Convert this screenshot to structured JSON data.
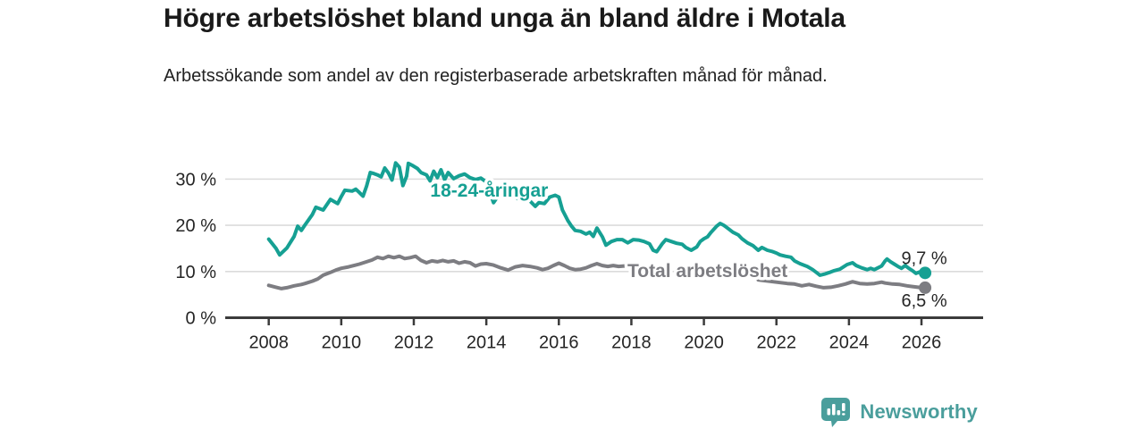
{
  "header": {
    "title": "Högre arbetslöshet bland unga än bland äldre i Motala",
    "subtitle": "Arbetssökande som andel av den registerbaserade arbetskraften månad för månad."
  },
  "footer": {
    "brand": "Newsworthy"
  },
  "colors": {
    "young": "#16a093",
    "total": "#7d7d82",
    "grid": "#dbdbdb",
    "axis": "#3b3b3b",
    "text": "#252525",
    "label_halo": "#ffffff",
    "brand": "#4a9e9c",
    "title": "#1a1a1a"
  },
  "chart_data": {
    "type": "line",
    "title": "Högre arbetslöshet bland unga än bland äldre i Motala",
    "subtitle": "Arbetssökande som andel av den registerbaserade arbetskraften månad för månad.",
    "xlabel": "",
    "ylabel": "",
    "grid": "horizontal",
    "legend_position": "inline-on-line",
    "xlim": [
      2006.8,
      2027.7
    ],
    "ylim": [
      0,
      38
    ],
    "yticks": [
      0,
      10,
      20,
      30
    ],
    "ytick_suffix": " %",
    "xticks": [
      2008,
      2010,
      2012,
      2014,
      2016,
      2018,
      2020,
      2022,
      2024,
      2026
    ],
    "series": [
      {
        "name": "18-24-åringar",
        "color_key": "young",
        "end_label": "9,7 %",
        "end_value": 9.7,
        "end_label_offset": -10,
        "label_at": [
          2014.08,
          27.6
        ],
        "segments": [
          [
            [
              2008.0,
              17.0
            ],
            [
              2008.2,
              15.0
            ],
            [
              2008.3,
              13.6
            ],
            [
              2008.5,
              15.1
            ],
            [
              2008.7,
              17.6
            ],
            [
              2008.8,
              19.8
            ],
            [
              2008.9,
              18.9
            ],
            [
              2009.0,
              20.1
            ],
            [
              2009.2,
              22.3
            ],
            [
              2009.3,
              23.9
            ],
            [
              2009.5,
              23.3
            ],
            [
              2009.7,
              25.6
            ],
            [
              2009.9,
              24.7
            ],
            [
              2010.0,
              26.2
            ],
            [
              2010.1,
              27.6
            ],
            [
              2010.3,
              27.4
            ],
            [
              2010.4,
              27.8
            ],
            [
              2010.5,
              27.1
            ],
            [
              2010.6,
              26.3
            ],
            [
              2010.7,
              28.5
            ],
            [
              2010.8,
              31.4
            ],
            [
              2010.9,
              31.2
            ],
            [
              2011.0,
              30.9
            ],
            [
              2011.1,
              30.5
            ],
            [
              2011.2,
              32.4
            ],
            [
              2011.3,
              31.3
            ],
            [
              2011.4,
              29.8
            ],
            [
              2011.5,
              33.5
            ],
            [
              2011.6,
              32.6
            ],
            [
              2011.7,
              28.6
            ],
            [
              2011.8,
              30.6
            ],
            [
              2011.85,
              33.4
            ],
            [
              2011.95,
              33.0
            ],
            [
              2012.1,
              32.3
            ],
            [
              2012.2,
              31.4
            ],
            [
              2012.35,
              30.9
            ],
            [
              2012.45,
              29.6
            ],
            [
              2012.55,
              31.7
            ],
            [
              2012.65,
              30.3
            ],
            [
              2012.75,
              32.0
            ],
            [
              2012.85,
              29.9
            ],
            [
              2012.95,
              31.4
            ],
            [
              2013.1,
              30.1
            ],
            [
              2013.25,
              30.7
            ],
            [
              2013.4,
              31.1
            ],
            [
              2013.55,
              30.3
            ],
            [
              2013.7,
              29.9
            ],
            [
              2013.85,
              30.2
            ],
            [
              2014.0,
              29.4
            ],
            [
              2014.2,
              24.9
            ],
            [
              2014.35,
              26.6
            ],
            [
              2014.5,
              26.1
            ],
            [
              2014.7,
              26.4
            ],
            [
              2014.85,
              25.8
            ],
            [
              2015.0,
              26.2
            ],
            [
              2015.2,
              25.3
            ],
            [
              2015.35,
              24.1
            ],
            [
              2015.45,
              24.9
            ],
            [
              2015.6,
              24.7
            ],
            [
              2015.75,
              26.1
            ],
            [
              2015.9,
              26.5
            ],
            [
              2016.0,
              26.1
            ],
            [
              2016.1,
              23.3
            ],
            [
              2016.25,
              21.0
            ],
            [
              2016.35,
              19.8
            ],
            [
              2016.45,
              18.9
            ],
            [
              2016.6,
              18.7
            ],
            [
              2016.75,
              18.1
            ],
            [
              2016.85,
              18.5
            ],
            [
              2016.95,
              17.6
            ],
            [
              2017.05,
              19.4
            ],
            [
              2017.2,
              17.5
            ],
            [
              2017.3,
              15.7
            ],
            [
              2017.45,
              16.5
            ],
            [
              2017.6,
              16.9
            ],
            [
              2017.75,
              16.9
            ],
            [
              2017.9,
              16.2
            ],
            [
              2018.05,
              16.9
            ],
            [
              2018.2,
              16.8
            ],
            [
              2018.35,
              16.5
            ],
            [
              2018.5,
              16.0
            ],
            [
              2018.6,
              14.6
            ],
            [
              2018.7,
              14.3
            ],
            [
              2018.85,
              16.0
            ],
            [
              2018.95,
              16.9
            ],
            [
              2019.1,
              16.5
            ],
            [
              2019.25,
              16.1
            ],
            [
              2019.4,
              15.9
            ],
            [
              2019.5,
              15.2
            ],
            [
              2019.65,
              14.6
            ],
            [
              2019.8,
              15.3
            ],
            [
              2019.9,
              16.5
            ],
            [
              2020.0,
              17.1
            ],
            [
              2020.1,
              17.5
            ],
            [
              2020.2,
              18.5
            ],
            [
              2020.35,
              19.8
            ],
            [
              2020.45,
              20.4
            ],
            [
              2020.55,
              20.0
            ],
            [
              2020.65,
              19.4
            ],
            [
              2020.8,
              18.5
            ],
            [
              2020.95,
              17.9
            ],
            [
              2021.05,
              17.1
            ],
            [
              2021.2,
              16.2
            ],
            [
              2021.35,
              15.6
            ],
            [
              2021.5,
              14.6
            ],
            [
              2021.6,
              15.2
            ],
            [
              2021.75,
              14.6
            ],
            [
              2021.9,
              14.3
            ],
            [
              2022.0,
              14.0
            ],
            [
              2022.1,
              13.6
            ],
            [
              2022.25,
              13.3
            ],
            [
              2022.4,
              13.1
            ],
            [
              2022.5,
              12.3
            ],
            [
              2022.65,
              11.7
            ],
            [
              2022.85,
              11.1
            ],
            [
              2023.0,
              10.4
            ],
            [
              2023.1,
              9.8
            ],
            [
              2023.2,
              9.2
            ],
            [
              2023.35,
              9.5
            ],
            [
              2023.5,
              9.9
            ],
            [
              2023.6,
              10.2
            ],
            [
              2023.75,
              10.5
            ],
            [
              2023.85,
              11.0
            ],
            [
              2023.95,
              11.5
            ],
            [
              2024.1,
              11.9
            ],
            [
              2024.2,
              11.3
            ],
            [
              2024.35,
              10.8
            ],
            [
              2024.5,
              10.4
            ],
            [
              2024.6,
              10.7
            ],
            [
              2024.7,
              10.4
            ],
            [
              2024.8,
              10.8
            ],
            [
              2024.9,
              11.2
            ],
            [
              2025.0,
              12.3
            ],
            [
              2025.05,
              12.7
            ],
            [
              2025.15,
              12.1
            ],
            [
              2025.25,
              11.6
            ],
            [
              2025.35,
              11.1
            ],
            [
              2025.45,
              10.7
            ],
            [
              2025.55,
              11.3
            ],
            [
              2025.65,
              10.7
            ],
            [
              2025.75,
              10.2
            ],
            [
              2025.85,
              9.6
            ],
            [
              2025.95,
              9.9
            ],
            [
              2026.05,
              9.6
            ],
            [
              2026.1,
              9.7
            ]
          ]
        ]
      },
      {
        "name": "Total arbetslöshet",
        "color_key": "total",
        "end_label": "6,5 %",
        "end_value": 6.5,
        "end_label_offset": 21,
        "label_at": [
          2020.1,
          10.2
        ],
        "segments": [
          [
            [
              2008.0,
              7.0
            ],
            [
              2008.2,
              6.6
            ],
            [
              2008.35,
              6.3
            ],
            [
              2008.5,
              6.5
            ],
            [
              2008.7,
              6.9
            ],
            [
              2008.9,
              7.2
            ],
            [
              2009.0,
              7.4
            ],
            [
              2009.2,
              7.9
            ],
            [
              2009.35,
              8.4
            ],
            [
              2009.5,
              9.2
            ],
            [
              2009.7,
              9.8
            ],
            [
              2009.85,
              10.3
            ],
            [
              2010.0,
              10.7
            ],
            [
              2010.2,
              11.0
            ],
            [
              2010.35,
              11.3
            ],
            [
              2010.5,
              11.6
            ],
            [
              2010.7,
              12.1
            ],
            [
              2010.85,
              12.5
            ],
            [
              2011.0,
              13.1
            ],
            [
              2011.15,
              12.8
            ],
            [
              2011.3,
              13.3
            ],
            [
              2011.45,
              13.0
            ],
            [
              2011.6,
              13.3
            ],
            [
              2011.75,
              12.8
            ],
            [
              2011.9,
              13.0
            ],
            [
              2012.05,
              13.3
            ],
            [
              2012.2,
              12.4
            ],
            [
              2012.35,
              11.9
            ],
            [
              2012.5,
              12.3
            ],
            [
              2012.65,
              12.1
            ],
            [
              2012.8,
              12.4
            ],
            [
              2012.95,
              12.1
            ],
            [
              2013.1,
              12.3
            ],
            [
              2013.25,
              11.8
            ],
            [
              2013.4,
              12.1
            ],
            [
              2013.55,
              11.9
            ],
            [
              2013.7,
              11.2
            ],
            [
              2013.85,
              11.6
            ],
            [
              2014.0,
              11.7
            ],
            [
              2014.2,
              11.4
            ],
            [
              2014.4,
              10.8
            ],
            [
              2014.6,
              10.3
            ],
            [
              2014.8,
              11.0
            ],
            [
              2015.0,
              11.3
            ],
            [
              2015.2,
              11.1
            ],
            [
              2015.4,
              10.8
            ],
            [
              2015.55,
              10.4
            ],
            [
              2015.7,
              10.7
            ],
            [
              2015.85,
              11.3
            ],
            [
              2016.0,
              11.8
            ],
            [
              2016.15,
              11.3
            ],
            [
              2016.3,
              10.7
            ],
            [
              2016.45,
              10.4
            ],
            [
              2016.6,
              10.5
            ],
            [
              2016.75,
              10.8
            ],
            [
              2016.9,
              11.3
            ],
            [
              2017.05,
              11.7
            ],
            [
              2017.2,
              11.3
            ],
            [
              2017.35,
              11.1
            ],
            [
              2017.5,
              11.3
            ],
            [
              2017.65,
              11.1
            ],
            [
              2017.8,
              11.2
            ]
          ],
          [
            [
              2021.5,
              8.2
            ],
            [
              2021.7,
              8.0
            ],
            [
              2021.9,
              7.8
            ],
            [
              2022.1,
              7.6
            ],
            [
              2022.3,
              7.4
            ],
            [
              2022.5,
              7.3
            ],
            [
              2022.7,
              6.9
            ],
            [
              2022.9,
              7.2
            ],
            [
              2023.1,
              6.8
            ],
            [
              2023.3,
              6.5
            ],
            [
              2023.5,
              6.6
            ],
            [
              2023.7,
              6.9
            ],
            [
              2023.9,
              7.3
            ],
            [
              2024.1,
              7.8
            ],
            [
              2024.3,
              7.4
            ],
            [
              2024.5,
              7.3
            ],
            [
              2024.7,
              7.4
            ],
            [
              2024.9,
              7.7
            ],
            [
              2025.0,
              7.5
            ],
            [
              2025.2,
              7.3
            ],
            [
              2025.4,
              7.2
            ],
            [
              2025.6,
              6.9
            ],
            [
              2025.8,
              6.7
            ],
            [
              2026.0,
              6.5
            ],
            [
              2026.1,
              6.5
            ]
          ]
        ]
      }
    ]
  }
}
